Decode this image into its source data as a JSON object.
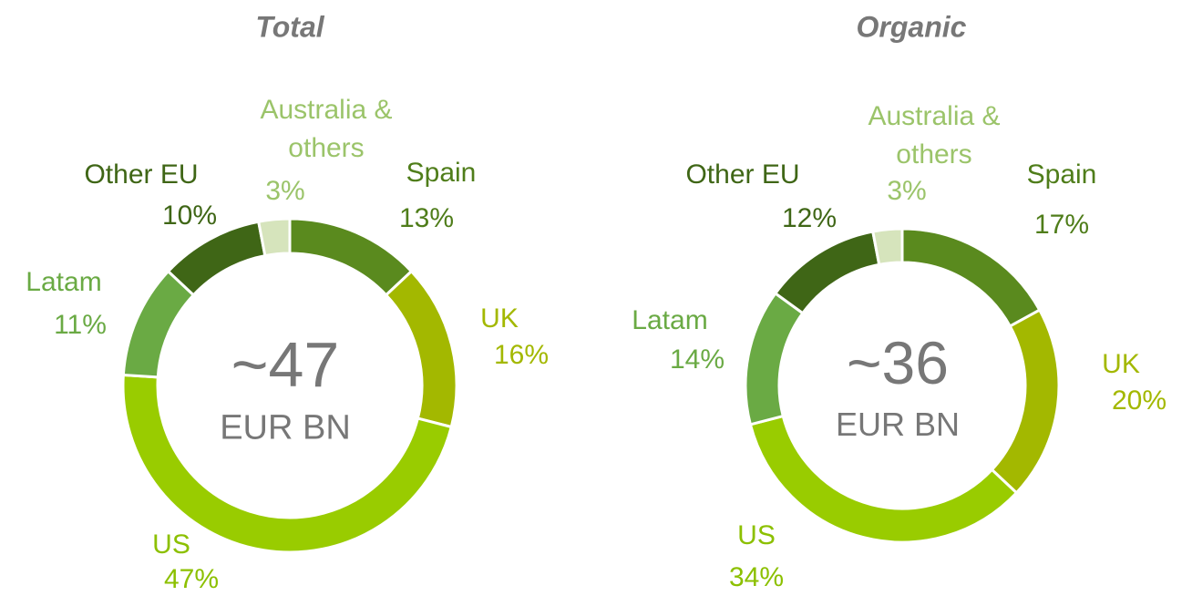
{
  "chart_data": [
    {
      "type": "pie",
      "title": "Total",
      "center_label": "~47",
      "center_sublabel": "EUR BN",
      "categories": [
        "Spain",
        "UK",
        "US",
        "Latam",
        "Other EU",
        "Australia & others"
      ],
      "values": [
        13,
        16,
        47,
        11,
        10,
        3
      ],
      "value_labels": [
        "13%",
        "16%",
        "47%",
        "11%",
        "10%",
        "3%"
      ],
      "colors": [
        "#5a8a1e",
        "#a3b800",
        "#99cc00",
        "#6aaa44",
        "#3f6616",
        "#d6e4bc"
      ]
    },
    {
      "type": "pie",
      "title": "Organic",
      "center_label": "~36",
      "center_sublabel": "EUR BN",
      "categories": [
        "Spain",
        "UK",
        "US",
        "Latam",
        "Other EU",
        "Australia & others"
      ],
      "values": [
        17,
        20,
        34,
        14,
        12,
        3
      ],
      "value_labels": [
        "17%",
        "20%",
        "34%",
        "14%",
        "12%",
        "3%"
      ],
      "colors": [
        "#5a8a1e",
        "#a3b800",
        "#99cc00",
        "#6aaa44",
        "#3f6616",
        "#d6e4bc"
      ]
    }
  ]
}
